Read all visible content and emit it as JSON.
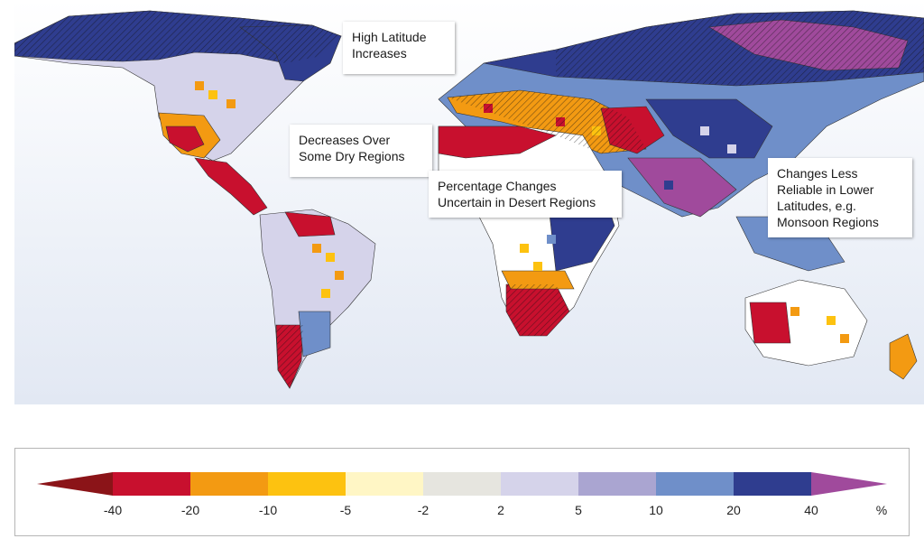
{
  "callouts": {
    "high_latitude": "High Latitude\nIncreases",
    "dry_regions": "Decreases Over\nSome Dry Regions",
    "desert": "Percentage Changes\nUncertain in Desert Regions",
    "low_latitudes": "Changes Less\nReliable in Lower\nLatitudes, e.g.\nMonsoon Regions"
  },
  "legend": {
    "unit": "%",
    "ticks": [
      "-40",
      "-20",
      "-10",
      "-5",
      "-2",
      "2",
      "5",
      "10",
      "20",
      "40"
    ],
    "colors": {
      "below_min": "#8b1418",
      "bins": [
        "#c8102e",
        "#f39a12",
        "#fdc210",
        "#fff6c5",
        "#e6e5df",
        "#d5d3ea",
        "#aaa5d1",
        "#6f8fc9",
        "#2f3d8f"
      ],
      "above_max": "#a04a9c"
    }
  },
  "map": {
    "ocean_color": "#edf1f8",
    "land_colors": {
      "strong_decrease": "#c8102e",
      "decrease": "#f39a12",
      "mild_decrease": "#fdc210",
      "near_zero": "#ffffff",
      "mild_increase": "#d5d3ea",
      "increase": "#6f8fc9",
      "strong_increase": "#2f3d8f",
      "extreme_increase": "#a04a9c"
    }
  }
}
